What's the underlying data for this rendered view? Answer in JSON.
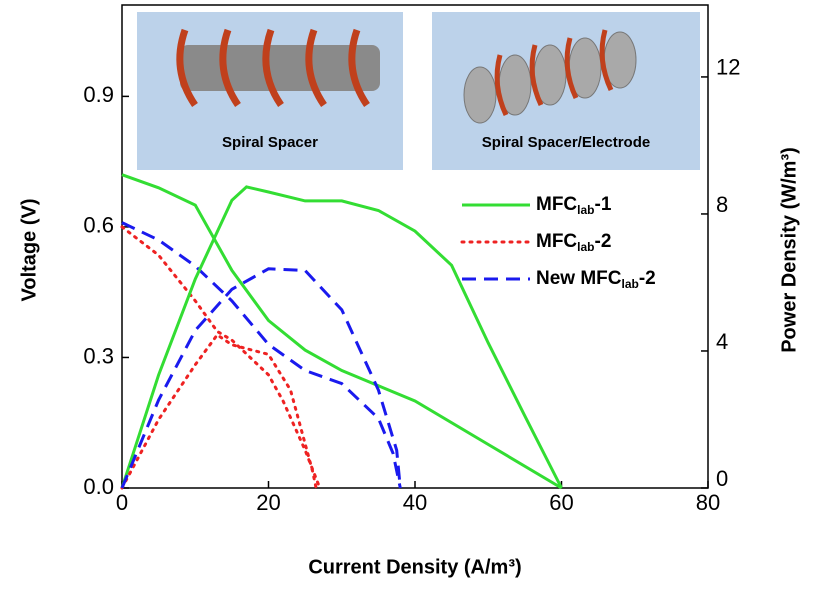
{
  "chart_data": {
    "type": "line",
    "x_label": "Current Density (A/m³)",
    "y_label": "Voltage (V)",
    "y2_label": "Power Density (W/m³)",
    "subscript": "lab",
    "xlim": [
      0,
      80
    ],
    "xticks": [
      0,
      20,
      40,
      60,
      80
    ],
    "ylim": [
      0,
      1.11
    ],
    "yticks": [
      {
        "value": 0,
        "label": "0.0"
      },
      0.3,
      0.6,
      0.9
    ],
    "y2lim": [
      0,
      14.1
    ],
    "y2ticks": [
      0,
      4,
      8,
      12
    ],
    "annotations": [
      "Spiral Spacer",
      "Spiral Spacer/Electrode"
    ],
    "series": [
      {
        "name": "MFClab-1",
        "color": "#33dd33",
        "dash": "solid",
        "x": [
          0,
          5,
          10,
          15,
          20,
          25,
          30,
          40,
          50,
          60
        ],
        "values": [
          0.72,
          0.69,
          0.65,
          0.5,
          0.385,
          0.317,
          0.27,
          0.2,
          0.1,
          0
        ]
      },
      {
        "name": "MFClab-2",
        "color": "#ee2222",
        "dash": "dotted",
        "x": [
          0,
          5,
          10,
          13,
          15,
          20,
          22,
          25,
          27
        ],
        "values": [
          0.6,
          0.535,
          0.43,
          0.36,
          0.34,
          0.26,
          0.2,
          0.087,
          0
        ]
      },
      {
        "name": "New MFClab-2",
        "color": "#1a1aee",
        "dash": "dashed",
        "x": [
          0,
          5,
          10,
          15,
          20,
          25,
          30,
          35,
          37,
          38
        ],
        "values": [
          0.61,
          0.57,
          0.51,
          0.43,
          0.33,
          0.27,
          0.24,
          0.16,
          0.08,
          0
        ]
      },
      {
        "color": "#33dd33",
        "dash": "solid",
        "axis": "y2",
        "x": [
          0,
          5,
          10,
          15,
          17,
          20,
          25,
          30,
          35,
          40,
          45,
          50,
          55,
          60
        ],
        "values": [
          0,
          3.3,
          6.1,
          8.4,
          8.79,
          8.64,
          8.38,
          8.38,
          8.1,
          7.5,
          6.5,
          4.23,
          2.1,
          0
        ]
      },
      {
        "color": "#ee2222",
        "dash": "dotted",
        "axis": "y2",
        "x": [
          0,
          5,
          10,
          13,
          15,
          20,
          23,
          26,
          26.5
        ],
        "values": [
          0,
          2.0,
          3.6,
          4.47,
          4.18,
          3.9,
          2.86,
          0.5,
          0
        ]
      },
      {
        "color": "#1a1aee",
        "dash": "dashed",
        "axis": "y2",
        "x": [
          0,
          5,
          10,
          15,
          20,
          25,
          30,
          35,
          37.5,
          38
        ],
        "values": [
          0,
          2.57,
          4.6,
          5.8,
          6.4,
          6.35,
          5.2,
          2.86,
          1.1,
          0
        ]
      }
    ]
  }
}
